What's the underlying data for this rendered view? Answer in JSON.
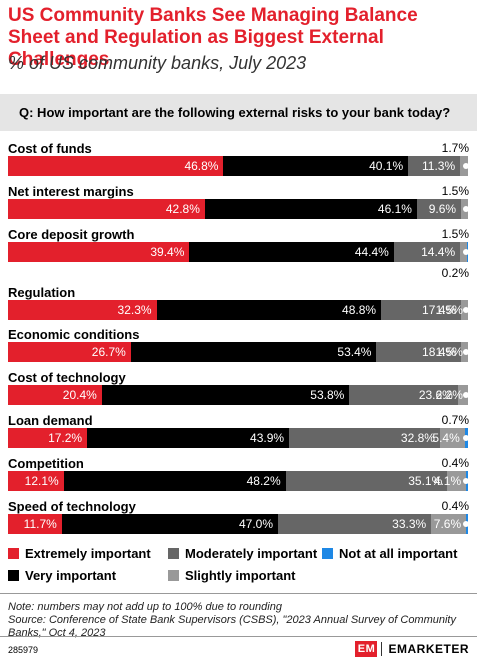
{
  "title": "US Community Banks See Managing Balance Sheet and Regulation as Biggest External Challenges",
  "subtitle": "% of US community banks, July 2023",
  "question": "Q: How important are the following external risks to your bank today?",
  "colors": {
    "extremely": "#e3202c",
    "very": "#000000",
    "moderately": "#666666",
    "slightly": "#999999",
    "not": "#1e88e5"
  },
  "legend": [
    {
      "label": "Extremely important",
      "color_key": "extremely"
    },
    {
      "label": "Moderately important",
      "color_key": "moderately"
    },
    {
      "label": "Not at all important",
      "color_key": "not"
    },
    {
      "label": "Very important",
      "color_key": "very"
    },
    {
      "label": "Slightly important",
      "color_key": "slightly"
    }
  ],
  "chart_data": {
    "type": "bar",
    "orientation": "horizontal-stacked",
    "categories": [
      "Cost of funds",
      "Net interest margins",
      "Core deposit growth",
      "Regulation",
      "Economic conditions",
      "Cost of technology",
      "Loan demand",
      "Competition",
      "Speed of technology"
    ],
    "series": [
      {
        "name": "Extremely important",
        "values": [
          46.8,
          42.8,
          39.4,
          32.3,
          26.7,
          20.4,
          17.2,
          12.1,
          11.7
        ]
      },
      {
        "name": "Very important",
        "values": [
          40.1,
          46.1,
          44.4,
          48.8,
          53.4,
          53.8,
          43.9,
          48.2,
          47.0
        ]
      },
      {
        "name": "Moderately important",
        "values": [
          11.3,
          9.6,
          14.4,
          17.4,
          18.4,
          23.6,
          32.8,
          35.1,
          33.3
        ]
      },
      {
        "name": "Slightly important",
        "values": [
          1.7,
          1.5,
          1.5,
          1.5,
          1.5,
          2.2,
          5.4,
          4.1,
          7.6
        ]
      },
      {
        "name": "Not at all important",
        "values": [
          0,
          0,
          0.2,
          0,
          0,
          0,
          0.7,
          0.4,
          0.4
        ]
      }
    ],
    "labels": [
      [
        "46.8%",
        "40.1%",
        "11.3%",
        "",
        ""
      ],
      [
        "42.8%",
        "46.1%",
        "9.6%",
        "",
        ""
      ],
      [
        "39.4%",
        "44.4%",
        "14.4%",
        "",
        ""
      ],
      [
        "32.3%",
        "48.8%",
        "17.4%",
        "1.5%",
        ""
      ],
      [
        "26.7%",
        "53.4%",
        "18.4%",
        "1.5%",
        ""
      ],
      [
        "20.4%",
        "53.8%",
        "23.6%",
        "2.2%",
        ""
      ],
      [
        "17.2%",
        "43.9%",
        "32.8%",
        "5.4%",
        ""
      ],
      [
        "12.1%",
        "48.2%",
        "35.1%",
        "4.1%",
        ""
      ],
      [
        "11.7%",
        "47.0%",
        "33.3%",
        "7.6%",
        ""
      ]
    ],
    "callouts_above": [
      "1.7%",
      "1.5%",
      "1.5%",
      "",
      "",
      "",
      "0.7%",
      "0.4%",
      "0.4%"
    ],
    "callouts_below": [
      "",
      "",
      "0.2%",
      "",
      "",
      "",
      "",
      "",
      ""
    ],
    "xlim": [
      0,
      100
    ],
    "legend_position": "bottom"
  },
  "notes": {
    "line1": "Note: numbers may not add up to 100% due to rounding",
    "line2": "Source: Conference of State Bank Supervisors (CSBS), \"2023 Annual Survey of Community Banks,\" Oct 4, 2023"
  },
  "chart_id": "285979",
  "brand": {
    "icon_text": "EM",
    "name": "EMARKETER"
  }
}
